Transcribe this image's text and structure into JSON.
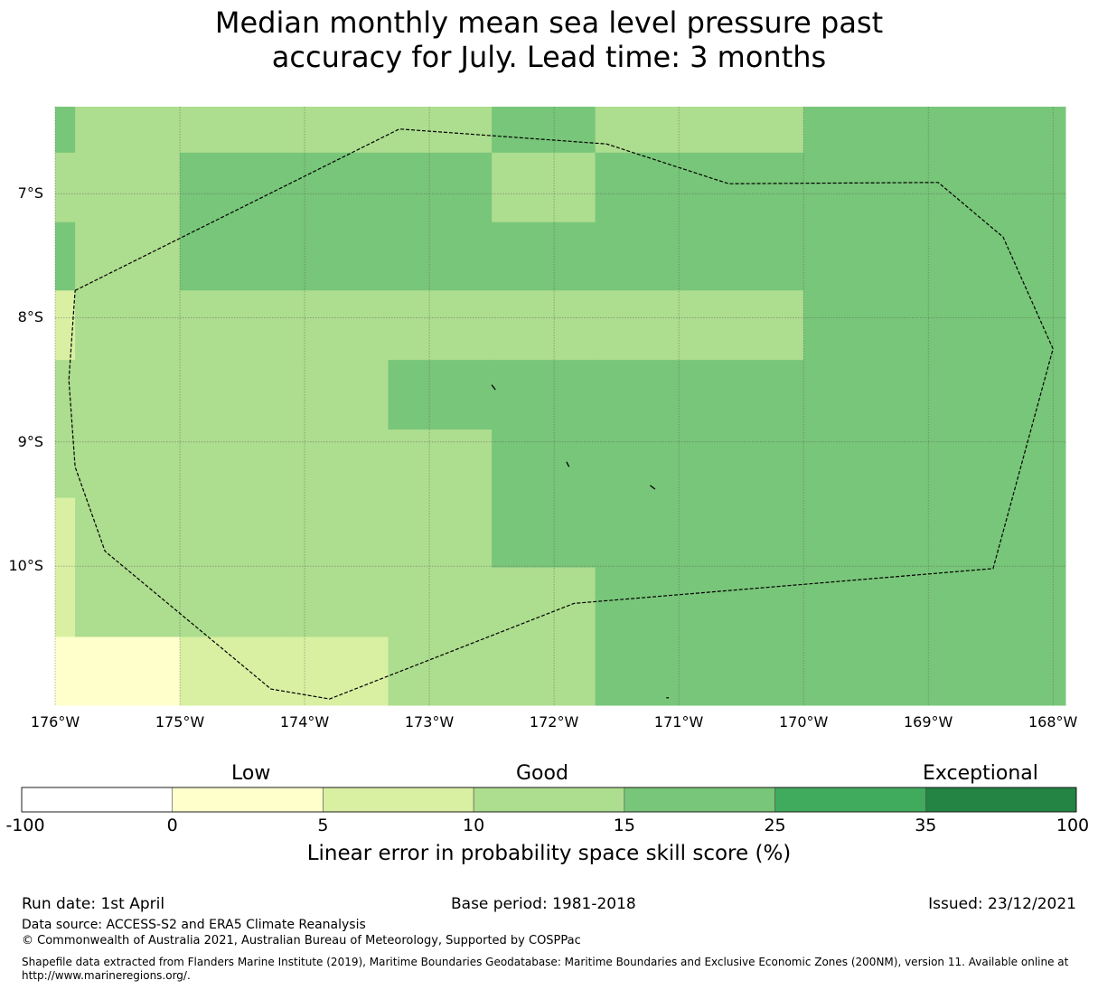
{
  "title": {
    "line1": "Median monthly mean sea level pressure past",
    "line2": "accuracy for July. Lead time: 3 months"
  },
  "map": {
    "lon_range": [
      -176.0,
      -167.9
    ],
    "lat_range": [
      -11.12,
      -6.3
    ],
    "lat_ticks": [
      {
        "value": -7,
        "label": "7°S"
      },
      {
        "value": -8,
        "label": "8°S"
      },
      {
        "value": -9,
        "label": "9°S"
      },
      {
        "value": -10,
        "label": "10°S"
      }
    ],
    "lon_ticks": [
      {
        "value": -176,
        "label": "176°W"
      },
      {
        "value": -175,
        "label": "175°W"
      },
      {
        "value": -174,
        "label": "174°W"
      },
      {
        "value": -173,
        "label": "173°W"
      },
      {
        "value": -172,
        "label": "172°W"
      },
      {
        "value": -171,
        "label": "171°W"
      },
      {
        "value": -170,
        "label": "170°W"
      },
      {
        "value": -169,
        "label": "169°W"
      },
      {
        "value": -168,
        "label": "168°W"
      }
    ],
    "grid_cell_category_rows": [
      [
        3,
        2,
        2,
        2,
        2,
        3,
        2,
        2,
        3,
        3
      ],
      [
        2,
        2,
        3,
        3,
        3,
        2,
        3,
        3,
        3,
        3
      ],
      [
        3,
        2,
        3,
        3,
        3,
        3,
        3,
        3,
        3,
        3
      ],
      [
        1,
        2,
        2,
        2,
        2,
        2,
        2,
        2,
        3,
        3
      ],
      [
        2,
        2,
        2,
        2,
        3,
        3,
        3,
        3,
        3,
        3
      ],
      [
        2,
        2,
        2,
        2,
        2,
        3,
        3,
        3,
        3,
        3
      ],
      [
        1,
        2,
        2,
        2,
        2,
        3,
        3,
        3,
        3,
        3
      ],
      [
        1,
        2,
        2,
        2,
        2,
        2,
        3,
        3,
        3,
        3
      ],
      [
        0,
        0,
        1,
        1,
        2,
        2,
        3,
        3,
        3,
        3
      ]
    ],
    "grid_row_lat_edges": [
      -6.3,
      -6.67,
      -7.23,
      -7.78,
      -8.34,
      -8.9,
      -9.45,
      -10.01,
      -10.57,
      -11.12
    ],
    "grid_col_lon_edges": [
      -176.0,
      -175.84,
      -175.0,
      -174.17,
      -173.33,
      -172.5,
      -171.67,
      -170.83,
      -170.0,
      -169.17,
      -167.9
    ],
    "eez_boundary": [
      [
        -175.84,
        -7.78
      ],
      [
        -173.24,
        -6.48
      ],
      [
        -171.58,
        -6.6
      ],
      [
        -170.6,
        -6.92
      ],
      [
        -168.92,
        -6.91
      ],
      [
        -168.4,
        -7.35
      ],
      [
        -168.0,
        -8.25
      ],
      [
        -168.48,
        -10.02
      ],
      [
        -171.84,
        -10.3
      ],
      [
        -173.8,
        -11.07
      ],
      [
        -174.27,
        -10.99
      ],
      [
        -175.6,
        -9.88
      ],
      [
        -175.84,
        -9.2
      ],
      [
        -175.89,
        -8.5
      ],
      [
        -175.84,
        -7.78
      ]
    ],
    "islands": [
      [
        [
          -172.5,
          -8.54
        ],
        [
          -172.47,
          -8.58
        ]
      ],
      [
        [
          -171.9,
          -9.16
        ],
        [
          -171.88,
          -9.2
        ]
      ],
      [
        [
          -171.23,
          -9.35
        ],
        [
          -171.19,
          -9.38
        ]
      ],
      [
        [
          -171.1,
          -11.06
        ],
        [
          -171.08,
          -11.06
        ]
      ]
    ],
    "boundary_color": "#000000",
    "grid_color": "#555555"
  },
  "colorbar": {
    "categories": [
      "Low",
      "Good",
      "Exceptional"
    ],
    "ticks": [
      "-100",
      "0",
      "5",
      "10",
      "15",
      "25",
      "35",
      "100"
    ],
    "colors": [
      "#ffffff",
      "#ffffcc",
      "#d9f0a3",
      "#addd8e",
      "#78c679",
      "#41ab5d",
      "#238443"
    ],
    "label": "Linear error in probability space skill score (%)"
  },
  "footer": {
    "run_date": "Run date: 1st April",
    "base_period": "Base period: 1981-2018",
    "issued": "Issued: 23/12/2021",
    "data_source": "Data source: ACCESS-S2 and ERA5 Climate Reanalysis",
    "copyright": "© Commonwealth of Australia 2021, Australian Bureau of Meteorology, Supported by COSPPac",
    "shapefile_line1": "Shapefile data extracted from Flanders Marine Institute (2019), Maritime Boundaries Geodatabase: Maritime Boundaries and Exclusive Economic Zones (200NM), version 11. Available online at",
    "shapefile_line2": "http://www.marineregions.org/."
  }
}
